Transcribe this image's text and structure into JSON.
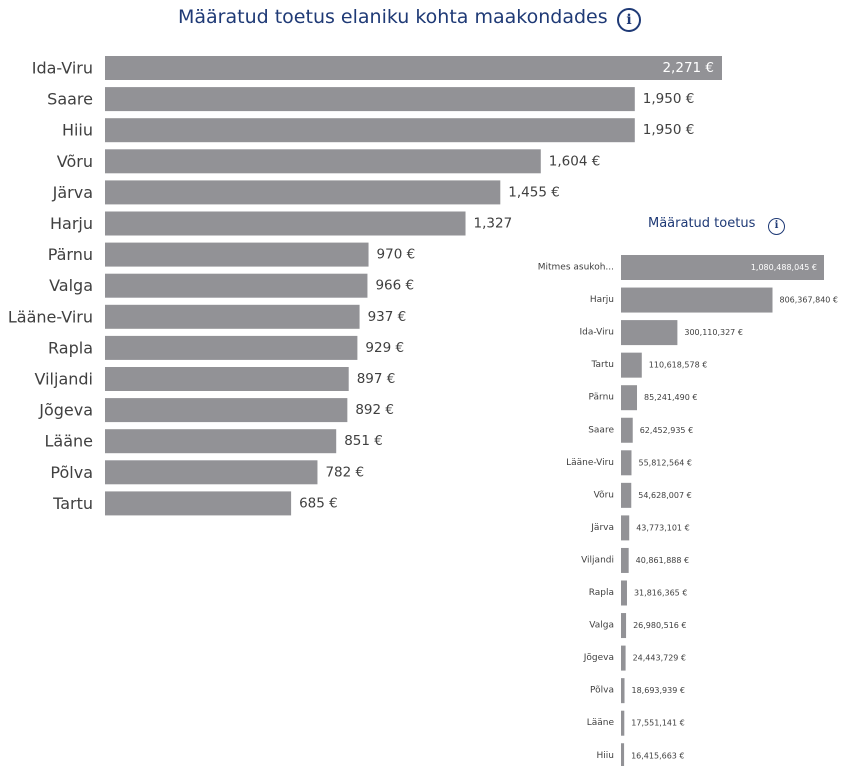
{
  "header": {
    "info_glyph": "i",
    "info_icon": "info-circle-icon"
  },
  "colors": {
    "bar": "#929296",
    "title": "#1f3a76",
    "label": "#404040",
    "inner_label": "#ffffff"
  },
  "chart_data": [
    {
      "type": "bar",
      "orientation": "horizontal",
      "title": "Määratud toetus elaniku kohta maakondades",
      "categories": [
        "Ida-Viru",
        "Saare",
        "Hiiu",
        "Võru",
        "Järva",
        "Harju",
        "Pärnu",
        "Valga",
        "Lääne-Viru",
        "Rapla",
        "Viljandi",
        "Jõgeva",
        "Lääne",
        "Põlva",
        "Tartu"
      ],
      "values": [
        2271,
        1950,
        1950,
        1604,
        1455,
        1327,
        970,
        966,
        937,
        929,
        897,
        892,
        851,
        782,
        685
      ],
      "labels": [
        "2,271 €",
        "1,950 €",
        "1,950 €",
        "1,604 €",
        "1,455 €",
        "1,327",
        "970 €",
        "966 €",
        "937 €",
        "929 €",
        "897 €",
        "892 €",
        "851 €",
        "782 €",
        "685 €"
      ],
      "xlim": [
        0,
        2271
      ],
      "grid": false
    },
    {
      "type": "bar",
      "orientation": "horizontal",
      "title": "Määratud toetus",
      "categories": [
        "Mitmes asukoh...",
        "Harju",
        "Ida-Viru",
        "Tartu",
        "Pärnu",
        "Saare",
        "Lääne-Viru",
        "Võru",
        "Järva",
        "Viljandi",
        "Rapla",
        "Valga",
        "Jõgeva",
        "Põlva",
        "Lääne",
        "Hiiu"
      ],
      "values": [
        1080488045,
        806367840,
        300110327,
        110618578,
        85241490,
        62452935,
        55812564,
        54628007,
        43773101,
        40861888,
        31816365,
        26980516,
        24443729,
        18693939,
        17551141,
        16415663
      ],
      "labels": [
        "1,080,488,045 €",
        "806,367,840 €",
        "300,110,327 €",
        "110,618,578 €",
        "85,241,490 €",
        "62,452,935 €",
        "55,812,564 €",
        "54,628,007 €",
        "43,773,101 €",
        "40,861,888 €",
        "31,816,365 €",
        "26,980,516 €",
        "24,443,729 €",
        "18,693,939 €",
        "17,551,141 €",
        "16,415,663 €"
      ],
      "xlim": [
        0,
        1080488045
      ],
      "grid": false
    }
  ]
}
